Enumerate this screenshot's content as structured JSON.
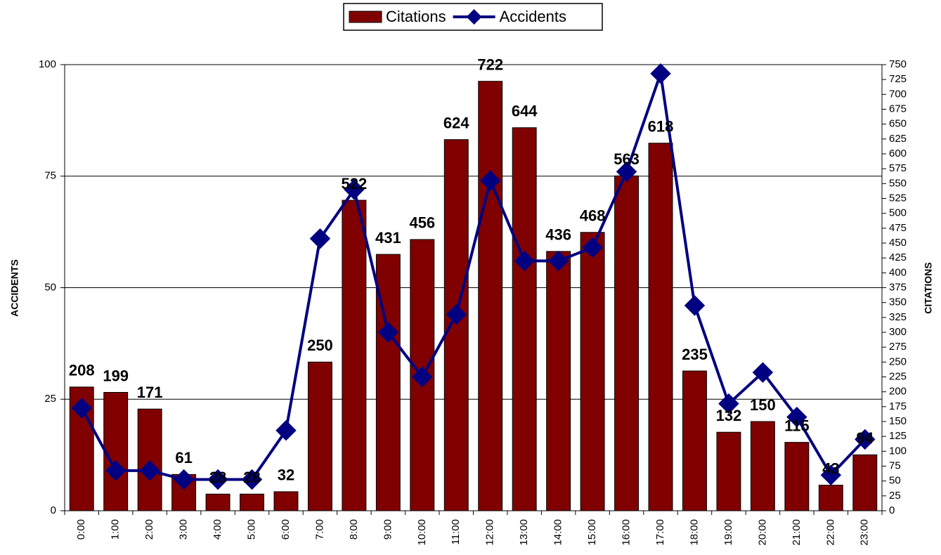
{
  "chart_data": {
    "type": "combo",
    "categories": [
      "0:00",
      "1:00",
      "2:00",
      "3:00",
      "4:00",
      "5:00",
      "6:00",
      "7:00",
      "8:00",
      "9:00",
      "10:00",
      "11:00",
      "12:00",
      "13:00",
      "14:00",
      "15:00",
      "16:00",
      "17:00",
      "18:00",
      "19:00",
      "20:00",
      "21:00",
      "22:00",
      "23:00"
    ],
    "series": [
      {
        "name": "Citations",
        "type": "bar",
        "axis": "y2",
        "color": "#800000",
        "values": [
          208,
          199,
          171,
          61,
          28,
          28,
          32,
          250,
          522,
          431,
          456,
          624,
          722,
          644,
          436,
          468,
          563,
          618,
          235,
          132,
          150,
          115,
          43,
          94
        ]
      },
      {
        "name": "Accidents",
        "type": "line",
        "color": "#000080",
        "values": [
          23,
          9,
          9,
          7,
          7,
          7,
          18,
          61,
          72,
          40,
          30,
          44,
          74,
          56,
          56,
          59,
          76,
          98,
          46,
          24,
          31,
          21,
          8,
          16
        ]
      }
    ],
    "ylabel": "ACCIDENTS",
    "y2label": "CITATIONS",
    "ylim": [
      0,
      100
    ],
    "yticks": [
      0,
      25,
      50,
      75,
      100
    ],
    "y2lim": [
      0,
      750
    ],
    "y2ticks": [
      0,
      25,
      50,
      75,
      100,
      125,
      150,
      175,
      200,
      225,
      250,
      275,
      300,
      325,
      350,
      375,
      400,
      425,
      450,
      475,
      500,
      525,
      550,
      575,
      600,
      625,
      650,
      675,
      700,
      725,
      750
    ],
    "grid": true,
    "legend": "top"
  }
}
